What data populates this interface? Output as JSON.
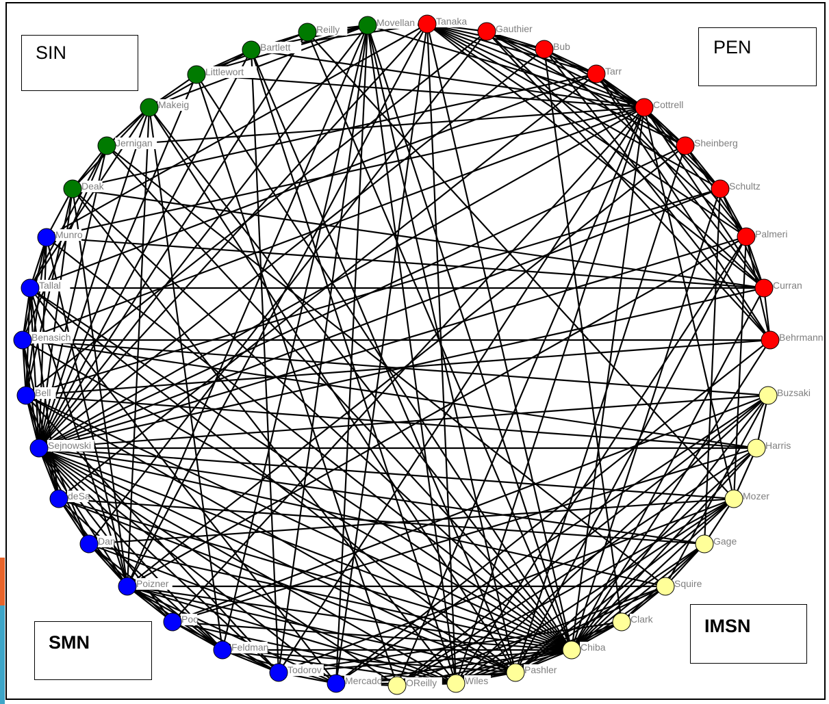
{
  "groups": [
    {
      "id": "SIN",
      "label": "SIN",
      "color": "#007a00"
    },
    {
      "id": "PEN",
      "label": "PEN",
      "color": "#ff0000"
    },
    {
      "id": "SMN",
      "label": "SMN",
      "color": "#0000ff"
    },
    {
      "id": "IMSN",
      "label": "IMSN",
      "color": "#ffff99"
    }
  ],
  "nodes": [
    {
      "id": "Movellan",
      "label": "Movellan",
      "group": "SIN"
    },
    {
      "id": "Reilly",
      "label": "Reilly",
      "group": "SIN"
    },
    {
      "id": "Bartlett",
      "label": "Bartlett",
      "group": "SIN"
    },
    {
      "id": "Littlewort",
      "label": "Littlewort",
      "group": "SIN"
    },
    {
      "id": "Makeig",
      "label": "Makeig",
      "group": "SIN"
    },
    {
      "id": "Jernigan",
      "label": "Jernigan",
      "group": "SIN"
    },
    {
      "id": "Deak",
      "label": "Deak",
      "group": "SIN"
    },
    {
      "id": "Tanaka",
      "label": "Tanaka",
      "group": "PEN"
    },
    {
      "id": "Gauthier",
      "label": "Gauthier",
      "group": "PEN"
    },
    {
      "id": "Bub",
      "label": "Bub",
      "group": "PEN"
    },
    {
      "id": "Tarr",
      "label": "Tarr",
      "group": "PEN"
    },
    {
      "id": "Cottrell",
      "label": "Cottrell",
      "group": "PEN"
    },
    {
      "id": "Sheinberg",
      "label": "Sheinberg",
      "group": "PEN"
    },
    {
      "id": "Schultz",
      "label": "Schultz",
      "group": "PEN"
    },
    {
      "id": "Palmeri",
      "label": "Palmeri",
      "group": "PEN"
    },
    {
      "id": "Curran",
      "label": "Curran",
      "group": "PEN"
    },
    {
      "id": "Behrmann",
      "label": "Behrmann",
      "group": "PEN"
    },
    {
      "id": "Munro",
      "label": "Munro",
      "group": "SMN"
    },
    {
      "id": "Tallal",
      "label": "Tallal",
      "group": "SMN"
    },
    {
      "id": "Benasich",
      "label": "Benasich",
      "group": "SMN"
    },
    {
      "id": "Bell",
      "label": "Bell",
      "group": "SMN"
    },
    {
      "id": "Sejnowski",
      "label": "Sejnowski",
      "group": "SMN"
    },
    {
      "id": "deSa",
      "label": "deSa",
      "group": "SMN"
    },
    {
      "id": "Dan",
      "label": "Dan",
      "group": "SMN"
    },
    {
      "id": "Poizner",
      "label": "Poizner",
      "group": "SMN"
    },
    {
      "id": "Poo",
      "label": "Poo",
      "group": "SMN"
    },
    {
      "id": "Feldman",
      "label": "Feldman",
      "group": "SMN"
    },
    {
      "id": "Todorov",
      "label": "Todorov",
      "group": "SMN"
    },
    {
      "id": "Mercado",
      "label": "Mercado",
      "group": "SMN"
    },
    {
      "id": "Buzsaki",
      "label": "Buzsaki",
      "group": "IMSN"
    },
    {
      "id": "Harris",
      "label": "Harris",
      "group": "IMSN"
    },
    {
      "id": "Mozer",
      "label": "Mozer",
      "group": "IMSN"
    },
    {
      "id": "Gage",
      "label": "Gage",
      "group": "IMSN"
    },
    {
      "id": "Squire",
      "label": "Squire",
      "group": "IMSN"
    },
    {
      "id": "Clark",
      "label": "Clark",
      "group": "IMSN"
    },
    {
      "id": "Chiba",
      "label": "Chiba",
      "group": "IMSN"
    },
    {
      "id": "Pashler",
      "label": "Pashler",
      "group": "IMSN"
    },
    {
      "id": "Wiles",
      "label": "Wiles",
      "group": "IMSN"
    },
    {
      "id": "OReilly",
      "label": "OReilly",
      "group": "IMSN"
    }
  ],
  "edges": [
    [
      "Movellan",
      "Bartlett"
    ],
    [
      "Movellan",
      "Littlewort"
    ],
    [
      "Movellan",
      "Reilly"
    ],
    [
      "Movellan",
      "Makeig"
    ],
    [
      "Movellan",
      "Sejnowski"
    ],
    [
      "Movellan",
      "Poizner"
    ],
    [
      "Movellan",
      "Chiba"
    ],
    [
      "Movellan",
      "Pashler"
    ],
    [
      "Movellan",
      "Wiles"
    ],
    [
      "Movellan",
      "Cottrell"
    ],
    [
      "Movellan",
      "Tanaka"
    ],
    [
      "Movellan",
      "Mercado"
    ],
    [
      "Movellan",
      "Todorov"
    ],
    [
      "Movellan",
      "Feldman"
    ],
    [
      "Reilly",
      "Bartlett"
    ],
    [
      "Reilly",
      "Littlewort"
    ],
    [
      "Reilly",
      "Chiba"
    ],
    [
      "Reilly",
      "Sejnowski"
    ],
    [
      "Reilly",
      "Mozer"
    ],
    [
      "Bartlett",
      "Littlewort"
    ],
    [
      "Bartlett",
      "Makeig"
    ],
    [
      "Bartlett",
      "Sejnowski"
    ],
    [
      "Bartlett",
      "Cottrell"
    ],
    [
      "Bartlett",
      "Tanaka"
    ],
    [
      "Bartlett",
      "Pashler"
    ],
    [
      "Bartlett",
      "Wiles"
    ],
    [
      "Bartlett",
      "Todorov"
    ],
    [
      "Littlewort",
      "Makeig"
    ],
    [
      "Littlewort",
      "Sejnowski"
    ],
    [
      "Littlewort",
      "Cottrell"
    ],
    [
      "Littlewort",
      "Chiba"
    ],
    [
      "Littlewort",
      "OReilly"
    ],
    [
      "Makeig",
      "Jernigan"
    ],
    [
      "Makeig",
      "Deak"
    ],
    [
      "Makeig",
      "Sejnowski"
    ],
    [
      "Makeig",
      "Poizner"
    ],
    [
      "Makeig",
      "Pashler"
    ],
    [
      "Makeig",
      "Chiba"
    ],
    [
      "Makeig",
      "Tallal"
    ],
    [
      "Makeig",
      "Feldman"
    ],
    [
      "Jernigan",
      "Deak"
    ],
    [
      "Jernigan",
      "Sejnowski"
    ],
    [
      "Jernigan",
      "Tallal"
    ],
    [
      "Jernigan",
      "Benasich"
    ],
    [
      "Jernigan",
      "Squire"
    ],
    [
      "Jernigan",
      "Cottrell"
    ],
    [
      "Jernigan",
      "Chiba"
    ],
    [
      "Deak",
      "Munro"
    ],
    [
      "Deak",
      "Sejnowski"
    ],
    [
      "Deak",
      "Bell"
    ],
    [
      "Deak",
      "Poizner"
    ],
    [
      "Deak",
      "Curran"
    ],
    [
      "Deak",
      "Chiba"
    ],
    [
      "Deak",
      "Tarr"
    ],
    [
      "Deak",
      "Wiles"
    ],
    [
      "Tanaka",
      "Gauthier"
    ],
    [
      "Tanaka",
      "Bub"
    ],
    [
      "Tanaka",
      "Tarr"
    ],
    [
      "Tanaka",
      "Cottrell"
    ],
    [
      "Tanaka",
      "Sheinberg"
    ],
    [
      "Tanaka",
      "Curran"
    ],
    [
      "Tanaka",
      "Palmeri"
    ],
    [
      "Tanaka",
      "Schultz"
    ],
    [
      "Tanaka",
      "Sejnowski"
    ],
    [
      "Tanaka",
      "Chiba"
    ],
    [
      "Tanaka",
      "Wiles"
    ],
    [
      "Tanaka",
      "Mercado"
    ],
    [
      "Tanaka",
      "Poizner"
    ],
    [
      "Gauthier",
      "Tarr"
    ],
    [
      "Gauthier",
      "Bub"
    ],
    [
      "Gauthier",
      "Cottrell"
    ],
    [
      "Gauthier",
      "Sheinberg"
    ],
    [
      "Gauthier",
      "Curran"
    ],
    [
      "Gauthier",
      "Behrmann"
    ],
    [
      "Gauthier",
      "Dan"
    ],
    [
      "Gauthier",
      "Bell"
    ],
    [
      "Bub",
      "Tarr"
    ],
    [
      "Bub",
      "Cottrell"
    ],
    [
      "Bub",
      "Behrmann"
    ],
    [
      "Bub",
      "Palmeri"
    ],
    [
      "Bub",
      "Sejnowski"
    ],
    [
      "Bub",
      "Clark"
    ],
    [
      "Tarr",
      "Cottrell"
    ],
    [
      "Tarr",
      "Sheinberg"
    ],
    [
      "Tarr",
      "Schultz"
    ],
    [
      "Tarr",
      "Behrmann"
    ],
    [
      "Tarr",
      "Curran"
    ],
    [
      "Tarr",
      "deSa"
    ],
    [
      "Tarr",
      "Tallal"
    ],
    [
      "Cottrell",
      "Sheinberg"
    ],
    [
      "Cottrell",
      "Palmeri"
    ],
    [
      "Cottrell",
      "Curran"
    ],
    [
      "Cottrell",
      "Schultz"
    ],
    [
      "Cottrell",
      "Sejnowski"
    ],
    [
      "Cottrell",
      "Wiles"
    ],
    [
      "Cottrell",
      "OReilly"
    ],
    [
      "Cottrell",
      "Chiba"
    ],
    [
      "Cottrell",
      "Mozer"
    ],
    [
      "Cottrell",
      "Benasich"
    ],
    [
      "Cottrell",
      "Todorov"
    ],
    [
      "Cottrell",
      "Poo"
    ],
    [
      "Cottrell",
      "Munro"
    ],
    [
      "Sheinberg",
      "Schultz"
    ],
    [
      "Sheinberg",
      "Palmeri"
    ],
    [
      "Sheinberg",
      "Poizner"
    ],
    [
      "Sheinberg",
      "Pashler"
    ],
    [
      "Schultz",
      "Palmeri"
    ],
    [
      "Schultz",
      "Curran"
    ],
    [
      "Schultz",
      "Bell"
    ],
    [
      "Schultz",
      "Gage"
    ],
    [
      "Schultz",
      "Chiba"
    ],
    [
      "Palmeri",
      "Curran"
    ],
    [
      "Palmeri",
      "Behrmann"
    ],
    [
      "Palmeri",
      "Mozer"
    ],
    [
      "Palmeri",
      "Sejnowski"
    ],
    [
      "Palmeri",
      "Pashler"
    ],
    [
      "Palmeri",
      "Wiles"
    ],
    [
      "Curran",
      "Behrmann"
    ],
    [
      "Curran",
      "Tallal"
    ],
    [
      "Curran",
      "Chiba"
    ],
    [
      "Curran",
      "Munro"
    ],
    [
      "Behrmann",
      "Benasich"
    ],
    [
      "Behrmann",
      "Chiba"
    ],
    [
      "Behrmann",
      "Mercado"
    ],
    [
      "Behrmann",
      "Bell"
    ],
    [
      "Munro",
      "Tallal"
    ],
    [
      "Munro",
      "Benasich"
    ],
    [
      "Munro",
      "Sejnowski"
    ],
    [
      "Munro",
      "Bell"
    ],
    [
      "Munro",
      "Chiba"
    ],
    [
      "Munro",
      "Poizner"
    ],
    [
      "Munro",
      "Tanaka"
    ],
    [
      "Tallal",
      "Benasich"
    ],
    [
      "Tallal",
      "Bell"
    ],
    [
      "Tallal",
      "Sejnowski"
    ],
    [
      "Tallal",
      "deSa"
    ],
    [
      "Tallal",
      "Poizner"
    ],
    [
      "Tallal",
      "Chiba"
    ],
    [
      "Tallal",
      "Pashler"
    ],
    [
      "Tallal",
      "Mercado"
    ],
    [
      "Benasich",
      "Bell"
    ],
    [
      "Benasich",
      "Sejnowski"
    ],
    [
      "Benasich",
      "Harris"
    ],
    [
      "Benasich",
      "deSa"
    ],
    [
      "Benasich",
      "Chiba"
    ],
    [
      "Benasich",
      "Buzsaki"
    ],
    [
      "Bell",
      "Sejnowski"
    ],
    [
      "Bell",
      "deSa"
    ],
    [
      "Bell",
      "Dan"
    ],
    [
      "Bell",
      "Harris"
    ],
    [
      "Bell",
      "Todorov"
    ],
    [
      "Bell",
      "Chiba"
    ],
    [
      "Bell",
      "Pashler"
    ],
    [
      "Sejnowski",
      "deSa"
    ],
    [
      "Sejnowski",
      "Dan"
    ],
    [
      "Sejnowski",
      "Poizner"
    ],
    [
      "Sejnowski",
      "Poo"
    ],
    [
      "Sejnowski",
      "Feldman"
    ],
    [
      "Sejnowski",
      "Todorov"
    ],
    [
      "Sejnowski",
      "Mercado"
    ],
    [
      "Sejnowski",
      "Harris"
    ],
    [
      "Sejnowski",
      "Buzsaki"
    ],
    [
      "Sejnowski",
      "Mozer"
    ],
    [
      "Sejnowski",
      "Chiba"
    ],
    [
      "Sejnowski",
      "Pashler"
    ],
    [
      "Sejnowski",
      "Wiles"
    ],
    [
      "Sejnowski",
      "OReilly"
    ],
    [
      "Sejnowski",
      "Gage"
    ],
    [
      "Sejnowski",
      "Squire"
    ],
    [
      "Sejnowski",
      "Curran"
    ],
    [
      "Sejnowski",
      "Schultz"
    ],
    [
      "Sejnowski",
      "Sheinberg"
    ],
    [
      "deSa",
      "Dan"
    ],
    [
      "deSa",
      "Poizner"
    ],
    [
      "deSa",
      "Chiba"
    ],
    [
      "deSa",
      "Pashler"
    ],
    [
      "deSa",
      "Gage"
    ],
    [
      "deSa",
      "Feldman"
    ],
    [
      "Dan",
      "Poizner"
    ],
    [
      "Dan",
      "Poo"
    ],
    [
      "Dan",
      "Feldman"
    ],
    [
      "Dan",
      "Chiba"
    ],
    [
      "Dan",
      "Mozer"
    ],
    [
      "Dan",
      "Wiles"
    ],
    [
      "Poizner",
      "Poo"
    ],
    [
      "Poizner",
      "Feldman"
    ],
    [
      "Poizner",
      "Todorov"
    ],
    [
      "Poizner",
      "Squire"
    ],
    [
      "Poizner",
      "Chiba"
    ],
    [
      "Poizner",
      "Pashler"
    ],
    [
      "Poizner",
      "Wiles"
    ],
    [
      "Poizner",
      "Mercado"
    ],
    [
      "Poizner",
      "Palmeri"
    ],
    [
      "Poo",
      "Feldman"
    ],
    [
      "Poo",
      "Todorov"
    ],
    [
      "Poo",
      "Chiba"
    ],
    [
      "Poo",
      "Buzsaki"
    ],
    [
      "Poo",
      "Wiles"
    ],
    [
      "Poo",
      "Harris"
    ],
    [
      "Feldman",
      "Todorov"
    ],
    [
      "Feldman",
      "Mercado"
    ],
    [
      "Feldman",
      "Chiba"
    ],
    [
      "Feldman",
      "Wiles"
    ],
    [
      "Feldman",
      "Pashler"
    ],
    [
      "Todorov",
      "Mercado"
    ],
    [
      "Todorov",
      "Chiba"
    ],
    [
      "Todorov",
      "Wiles"
    ],
    [
      "Todorov",
      "Mozer"
    ],
    [
      "Todorov",
      "Clark"
    ],
    [
      "Mercado",
      "Wiles"
    ],
    [
      "Mercado",
      "Chiba"
    ],
    [
      "Mercado",
      "Pashler"
    ],
    [
      "Mercado",
      "OReilly"
    ],
    [
      "Mercado",
      "Buzsaki"
    ],
    [
      "Buzsaki",
      "Harris"
    ],
    [
      "Buzsaki",
      "Chiba"
    ],
    [
      "Buzsaki",
      "Wiles"
    ],
    [
      "Buzsaki",
      "OReilly"
    ],
    [
      "Buzsaki",
      "Squire"
    ],
    [
      "Harris",
      "Chiba"
    ],
    [
      "Harris",
      "Mozer"
    ],
    [
      "Harris",
      "Pashler"
    ],
    [
      "Harris",
      "OReilly"
    ],
    [
      "Mozer",
      "Chiba"
    ],
    [
      "Mozer",
      "Pashler"
    ],
    [
      "Mozer",
      "Wiles"
    ],
    [
      "Mozer",
      "Gage"
    ],
    [
      "Mozer",
      "OReilly"
    ],
    [
      "Gage",
      "Squire"
    ],
    [
      "Gage",
      "Chiba"
    ],
    [
      "Gage",
      "Pashler"
    ],
    [
      "Gage",
      "Clark"
    ],
    [
      "Squire",
      "Clark"
    ],
    [
      "Squire",
      "Chiba"
    ],
    [
      "Squire",
      "Wiles"
    ],
    [
      "Squire",
      "OReilly"
    ],
    [
      "Clark",
      "Chiba"
    ],
    [
      "Clark",
      "Pashler"
    ],
    [
      "Clark",
      "Wiles"
    ],
    [
      "Chiba",
      "Pashler"
    ],
    [
      "Chiba",
      "Wiles"
    ],
    [
      "Chiba",
      "OReilly"
    ],
    [
      "Pashler",
      "Wiles"
    ],
    [
      "Pashler",
      "OReilly"
    ],
    [
      "Wiles",
      "OReilly"
    ]
  ]
}
